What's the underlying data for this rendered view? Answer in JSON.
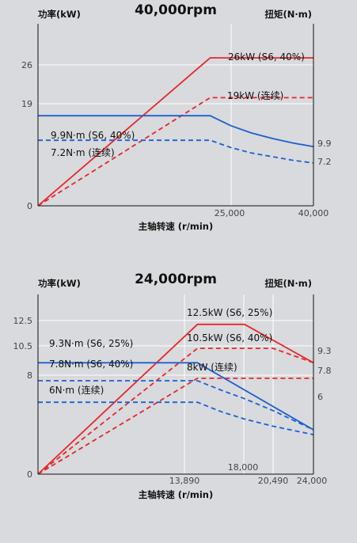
{
  "colors": {
    "power": "#e8262a",
    "torque": "#1f5fd0",
    "axis": "#111111",
    "grid": "#ffffff",
    "background": "#d8dadd"
  },
  "chart_data": [
    {
      "type": "line",
      "title": "40,000rpm",
      "ylabel_left": "功率(kW)",
      "ylabel_right": "扭矩(N·m)",
      "xlabel": "主轴转速 (r/min)",
      "xlim": [
        0,
        40000
      ],
      "ylim_left": [
        0,
        32
      ],
      "ylim_right": [
        0,
        20
      ],
      "left_ticks": [
        "0",
        "19",
        "26"
      ],
      "right_ticks": [
        "9.9",
        "7.2"
      ],
      "x_ticks": [
        "25,000",
        "40,000"
      ],
      "series": [
        {
          "name": "26kW (S6, 40%)",
          "axis": "left",
          "color": "power",
          "dashed": false,
          "points": [
            [
              0,
              0
            ],
            [
              25000,
              26
            ],
            [
              40000,
              26
            ]
          ]
        },
        {
          "name": "19kW (连续)",
          "axis": "left",
          "color": "power",
          "dashed": true,
          "points": [
            [
              0,
              0
            ],
            [
              25000,
              19
            ],
            [
              40000,
              19
            ]
          ]
        },
        {
          "name": "9.9N·m (S6, 40%)",
          "axis": "right",
          "color": "torque",
          "dashed": false,
          "points": [
            [
              0,
              9.9
            ],
            [
              25000,
              9.9
            ],
            [
              28000,
              8.8
            ],
            [
              31000,
              8.0
            ],
            [
              34000,
              7.4
            ],
            [
              37000,
              6.9
            ],
            [
              40000,
              6.5
            ]
          ]
        },
        {
          "name": "7.2N·m (连续)",
          "axis": "right",
          "color": "torque",
          "dashed": true,
          "points": [
            [
              0,
              7.2
            ],
            [
              25000,
              7.2
            ],
            [
              28000,
              6.4
            ],
            [
              31000,
              5.8
            ],
            [
              34000,
              5.4
            ],
            [
              37000,
              5.0
            ],
            [
              40000,
              4.7
            ]
          ]
        }
      ]
    },
    {
      "type": "line",
      "title": "24,000rpm",
      "ylabel_left": "功率(kW)",
      "ylabel_right": "扭矩(N·m)",
      "xlabel": "主轴转速 (r/min)",
      "xlim": [
        0,
        24000
      ],
      "ylim_left": [
        0,
        15
      ],
      "ylim_right": [
        0,
        15
      ],
      "left_ticks": [
        "0",
        "8",
        "10.5",
        "12.5"
      ],
      "right_ticks": [
        "9.3",
        "7.8",
        "6"
      ],
      "x_ticks": [
        "13,890",
        "18,000",
        "20,490",
        "24,000"
      ],
      "series": [
        {
          "name": "12.5kW (S6, 25%)",
          "axis": "left",
          "color": "power",
          "dashed": false,
          "points": [
            [
              0,
              0
            ],
            [
              13890,
              12.5
            ],
            [
              18000,
              12.5
            ],
            [
              24000,
              9.3
            ]
          ]
        },
        {
          "name": "10.5kW (S6, 40%)",
          "axis": "left",
          "color": "power",
          "dashed": true,
          "points": [
            [
              0,
              0
            ],
            [
              13890,
              10.5
            ],
            [
              20490,
              10.5
            ],
            [
              24000,
              9.3
            ]
          ]
        },
        {
          "name": "8kW (连续)",
          "axis": "left",
          "color": "power",
          "dashed": true,
          "points": [
            [
              0,
              0
            ],
            [
              13890,
              8
            ],
            [
              24000,
              8
            ]
          ]
        },
        {
          "name": "9.3N·m (S6, 25%)",
          "axis": "right",
          "color": "torque",
          "dashed": false,
          "points": [
            [
              0,
              9.3
            ],
            [
              13890,
              9.3
            ],
            [
              24000,
              3.7
            ]
          ]
        },
        {
          "name": "7.8N·m (S6, 40%)",
          "axis": "right",
          "color": "torque",
          "dashed": true,
          "points": [
            [
              0,
              7.8
            ],
            [
              13890,
              7.8
            ],
            [
              16000,
              7.0
            ],
            [
              18000,
              6.3
            ],
            [
              20490,
              5.3
            ],
            [
              24000,
              3.7
            ]
          ]
        },
        {
          "name": "6N·m (连续)",
          "axis": "right",
          "color": "torque",
          "dashed": true,
          "points": [
            [
              0,
              6
            ],
            [
              13890,
              6
            ],
            [
              16000,
              5.2
            ],
            [
              18000,
              4.6
            ],
            [
              20490,
              4.0
            ],
            [
              24000,
              3.3
            ]
          ]
        }
      ]
    }
  ]
}
